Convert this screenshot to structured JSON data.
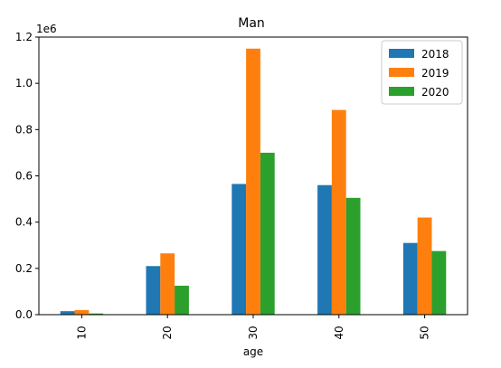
{
  "chart_data": {
    "type": "bar",
    "title": "Man",
    "xlabel": "age",
    "ylabel": "",
    "offset_label": "1e6",
    "categories": [
      "10",
      "20",
      "30",
      "40",
      "50"
    ],
    "series": [
      {
        "name": "2018",
        "color": "#1f77b4",
        "values": [
          0.015,
          0.21,
          0.565,
          0.56,
          0.31
        ]
      },
      {
        "name": "2019",
        "color": "#ff7f0e",
        "values": [
          0.02,
          0.265,
          1.15,
          0.885,
          0.42
        ]
      },
      {
        "name": "2020",
        "color": "#2ca02c",
        "values": [
          0.005,
          0.125,
          0.7,
          0.505,
          0.275
        ]
      }
    ],
    "ylim": [
      0,
      1.2
    ],
    "yticks": [
      "0.0",
      "0.2",
      "0.4",
      "0.6",
      "0.8",
      "1.0",
      "1.2"
    ],
    "grid": false,
    "legend_position": "top-right"
  }
}
